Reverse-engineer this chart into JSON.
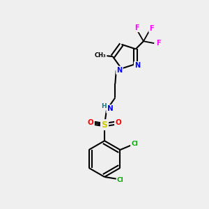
{
  "background_color": "#efefef",
  "bond_color": "#000000",
  "atom_colors": {
    "F": "#ff00ff",
    "N": "#0000ff",
    "O": "#ff0000",
    "S": "#cccc00",
    "Cl": "#00aa00",
    "H": "#008080",
    "C": "#000000"
  },
  "figsize": [
    3.0,
    3.0
  ],
  "dpi": 100
}
